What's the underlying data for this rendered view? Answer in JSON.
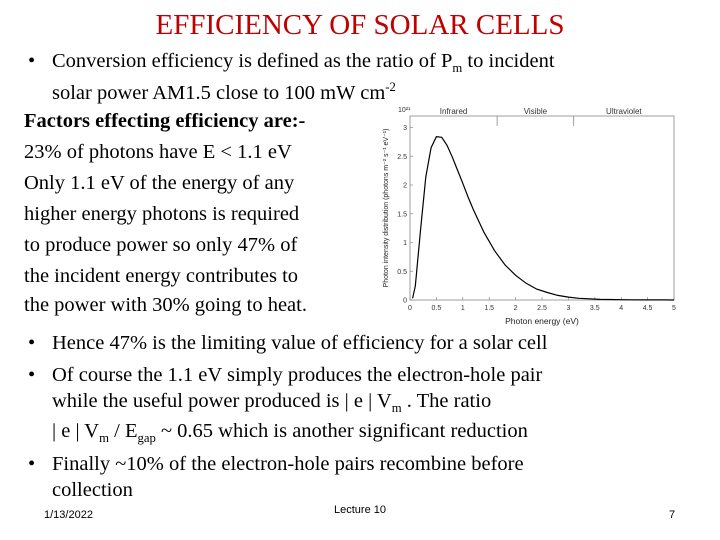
{
  "title": "EFFICIENCY OF SOLAR CELLS",
  "intro_bullet": {
    "line1_a": "Conversion efficiency is defined as the ratio of P",
    "line1_sub": "m",
    "line1_b": " to incident",
    "line2_a": "solar power AM1.5 close to 100 mW cm",
    "line2_sup": "-2"
  },
  "factors": {
    "heading": "Factors effecting efficiency are:-",
    "lines": [
      "23% of photons have E < 1.1 eV",
      "Only 1.1 eV of the energy of any",
      "higher energy photons is required",
      "to produce power so only 47% of",
      "the incident energy contributes to",
      "the power with 30% going to heat."
    ]
  },
  "bullets": {
    "b1": "Hence 47% is the limiting value of efficiency for a solar cell",
    "b2_l1": "Of course the 1.1 eV simply produces the electron-hole pair",
    "b2_l2_a": "while the useful power produced is | e | V",
    "b2_l2_sub": "m",
    "b2_l2_b": "  . The ratio",
    "b2_l3_a": "| e | V",
    "b2_l3_sub1": "m",
    "b2_l3_b": " / E",
    "b2_l3_sub2": "gap",
    "b2_l3_c": " ~ 0.65 which is another significant reduction",
    "b3_l1": "Finally ~10% of the electron-hole pairs recombine before",
    "b3_l2": "collection"
  },
  "footer": {
    "date": "1/13/2022",
    "lecture": "Lecture 10",
    "page": "7"
  },
  "chart_data": {
    "type": "line",
    "title": "",
    "xlabel": "Photon energy (eV)",
    "ylabel": "Photon intensity distribution (photons m⁻² s⁻¹ eV⁻¹)",
    "y_multiplier": "10²¹",
    "xlim": [
      0,
      5
    ],
    "ylim": [
      0,
      3.2
    ],
    "x_ticks": [
      "0",
      "0.5",
      "1",
      "1.5",
      "2",
      "2.5",
      "3",
      "3.5",
      "4",
      "4.5",
      "5"
    ],
    "y_ticks": [
      "0",
      "0.5",
      "1",
      "1.5",
      "2",
      "2.5",
      "3"
    ],
    "regions": [
      "Infrared",
      "Visible",
      "Ultraviolet"
    ],
    "region_bounds": [
      0,
      1.65,
      3.1,
      5
    ],
    "series": [
      {
        "x": [
          0.05,
          0.1,
          0.2,
          0.3,
          0.4,
          0.5,
          0.6,
          0.7,
          0.8,
          0.9,
          1.0,
          1.1,
          1.2,
          1.4,
          1.6,
          1.8,
          2.0,
          2.2,
          2.4,
          2.6,
          2.8,
          3.0,
          3.2,
          3.4,
          3.6,
          3.8,
          4.0,
          4.2,
          4.4,
          4.6,
          4.8,
          5.0
        ],
        "values": [
          0.03,
          0.24,
          1.23,
          2.14,
          2.65,
          2.84,
          2.83,
          2.69,
          2.49,
          2.26,
          2.03,
          1.79,
          1.57,
          1.18,
          0.86,
          0.61,
          0.43,
          0.29,
          0.19,
          0.13,
          0.08,
          0.05,
          0.03,
          0.02,
          0.01,
          0.008,
          0.005,
          0.003,
          0.002,
          0.001,
          0.001,
          0.0
        ],
        "color": "#000000"
      }
    ]
  }
}
